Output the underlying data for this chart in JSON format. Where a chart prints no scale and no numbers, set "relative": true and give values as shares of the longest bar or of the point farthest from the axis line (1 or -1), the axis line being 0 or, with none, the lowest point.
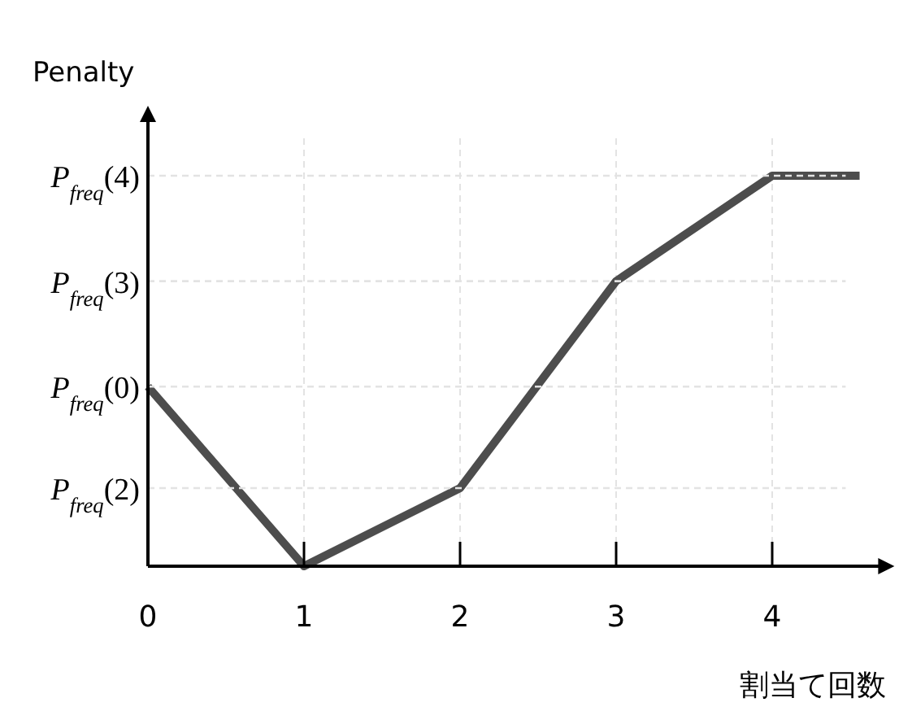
{
  "chart_data": {
    "type": "line",
    "ylabel": "Penalty",
    "xlabel": "割当て回数",
    "relative": true,
    "x": [
      0,
      1,
      2,
      3,
      4,
      4.56
    ],
    "series": [
      {
        "color": "#4d4d4d",
        "values": [
          0.46,
          0,
          0.2,
          0.73,
          1,
          1
        ]
      }
    ],
    "xlim": [
      0,
      4.7
    ],
    "xticks": [
      0,
      1,
      2,
      3,
      4
    ],
    "ref_lines": [
      {
        "axis": "y",
        "value": 0.2,
        "label": "P$_{freq}$(2)",
        "color": "#e3e3e3",
        "line_style": "dashed"
      },
      {
        "axis": "y",
        "value": 0.46,
        "label": "P$_{freq}$(0)",
        "color": "#e3e3e3",
        "line_style": "dashed"
      },
      {
        "axis": "y",
        "value": 0.73,
        "label": "P$_{freq}$(3)",
        "color": "#e3e3e3",
        "line_style": "dashed"
      },
      {
        "axis": "y",
        "value": 1,
        "label": "P$_{freq}$(4)",
        "color": "#e3e3e3",
        "line_style": "dashed"
      }
    ],
    "grid": "x",
    "marker": "none",
    "line_style": "solid"
  }
}
